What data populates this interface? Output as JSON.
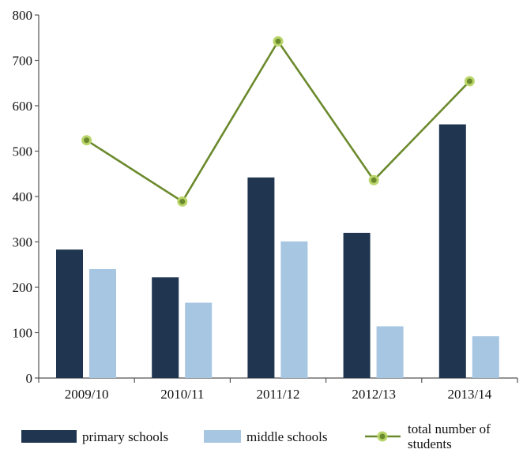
{
  "chart_data": {
    "type": "bar",
    "categories": [
      "2009/10",
      "2010/11",
      "2011/12",
      "2012/13",
      "2013/14"
    ],
    "ylim": [
      0,
      800
    ],
    "yticks": [
      0,
      100,
      200,
      300,
      400,
      500,
      600,
      700,
      800
    ],
    "grid": false,
    "legend_position": "bottom",
    "series": [
      {
        "name": "primary schools",
        "kind": "bar",
        "color": "#1f3550",
        "values": [
          283,
          222,
          442,
          320,
          559
        ]
      },
      {
        "name": "middle schools",
        "kind": "bar",
        "color": "#a7c6e2",
        "values": [
          240,
          166,
          301,
          114,
          92
        ]
      },
      {
        "name": "total number of students",
        "kind": "line",
        "color": "#6b8a2d",
        "marker_color": "#b9d56a",
        "values": [
          524,
          389,
          742,
          436,
          654
        ]
      }
    ]
  }
}
